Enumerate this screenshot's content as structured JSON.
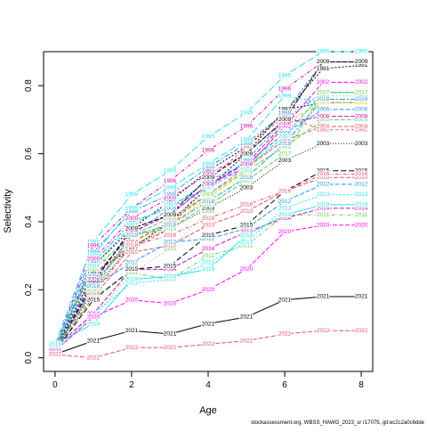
{
  "footer_note": "stockassessment.org, WBSS_HAWG_2023_sr r17075, git:ec2c2a0c6dde",
  "chart_data": {
    "type": "line",
    "xlabel": "Age",
    "ylabel": "Selectivity",
    "xlim": [
      -0.3,
      8.3
    ],
    "ylim": [
      -0.04,
      0.9
    ],
    "x_ticks": [
      0,
      2,
      4,
      6,
      8
    ],
    "y_ticks": [
      0.0,
      0.2,
      0.4,
      0.6,
      0.8
    ],
    "grid": false,
    "x": [
      0,
      1,
      2,
      3,
      4,
      5,
      6,
      7,
      8
    ],
    "series": [
      {
        "label": "1991",
        "color": "#000000",
        "dash": "2,2",
        "values": [
          0.02,
          0.27,
          0.38,
          0.46,
          0.55,
          0.62,
          0.72,
          0.85,
          0.86
        ]
      },
      {
        "label": "1992",
        "color": "#DF536B",
        "dash": "3,3",
        "values": [
          0.03,
          0.27,
          0.32,
          0.38,
          0.52,
          0.62,
          0.71,
          0.67,
          0.67
        ]
      },
      {
        "label": "1993",
        "color": "#61D04F",
        "dash": "1,3",
        "values": [
          0.02,
          0.12,
          0.25,
          0.32,
          0.43,
          0.55,
          0.66,
          0.77,
          0.77
        ]
      },
      {
        "label": "1994",
        "color": "#2297E6",
        "dash": "6,2,2,2",
        "values": [
          0.03,
          0.28,
          0.4,
          0.44,
          0.5,
          0.58,
          0.7,
          0.78,
          0.78
        ]
      },
      {
        "label": "1995",
        "color": "#28E2E5",
        "dash": "8,3",
        "values": [
          0.04,
          0.34,
          0.48,
          0.55,
          0.65,
          0.72,
          0.83,
          0.9,
          0.9
        ]
      },
      {
        "label": "1996",
        "color": "#CD0BBC",
        "dash": "4,2,1,2",
        "values": [
          0.03,
          0.33,
          0.44,
          0.52,
          0.61,
          0.68,
          0.79,
          0.87,
          0.87
        ]
      },
      {
        "label": "1997",
        "color": "#000000",
        "dash": "2,2",
        "values": [
          0.02,
          0.25,
          0.32,
          0.4,
          0.5,
          0.6,
          0.73,
          0.75,
          0.75
        ]
      },
      {
        "label": "1998",
        "color": "#2297E6",
        "dash": "6,2,2,2",
        "values": [
          0.03,
          0.31,
          0.43,
          0.48,
          0.56,
          0.63,
          0.72,
          0.87,
          0.87
        ]
      },
      {
        "label": "1999",
        "color": "#28E2E5",
        "dash": "8,3",
        "values": [
          0.03,
          0.3,
          0.44,
          0.5,
          0.57,
          0.64,
          0.77,
          0.75,
          0.75
        ]
      },
      {
        "label": "2000",
        "color": "#CD0BBC",
        "dash": "4,2,1,2",
        "values": [
          0.02,
          0.29,
          0.41,
          0.47,
          0.54,
          0.6,
          0.7,
          0.87,
          0.87
        ]
      },
      {
        "label": "2001",
        "color": "#F5C710",
        "dash": "5,2",
        "values": [
          0.02,
          0.24,
          0.34,
          0.39,
          0.47,
          0.55,
          0.69,
          0.75,
          0.75
        ]
      },
      {
        "label": "2002",
        "color": "#FF00FF",
        "dash": "5,2",
        "values": [
          0.02,
          0.22,
          0.38,
          0.42,
          0.51,
          0.56,
          0.68,
          0.81,
          0.81
        ]
      },
      {
        "label": "2003",
        "color": "#000000",
        "dash": "1,2",
        "values": [
          0.02,
          0.2,
          0.33,
          0.38,
          0.44,
          0.5,
          0.58,
          0.63,
          0.63
        ]
      },
      {
        "label": "2004",
        "color": "#DF536B",
        "dash": "5,2",
        "values": [
          0.02,
          0.22,
          0.34,
          0.4,
          0.48,
          0.56,
          0.64,
          0.68,
          0.68
        ]
      },
      {
        "label": "2005",
        "color": "#61D04F",
        "dash": "5,2",
        "values": [
          0.03,
          0.26,
          0.36,
          0.41,
          0.48,
          0.55,
          0.62,
          0.7,
          0.7
        ]
      },
      {
        "label": "2006",
        "color": "#2297E6",
        "dash": "5,2",
        "values": [
          0.02,
          0.24,
          0.36,
          0.44,
          0.52,
          0.57,
          0.66,
          0.73,
          0.73
        ]
      },
      {
        "label": "2007",
        "color": "#28E2E5",
        "dash": "5,2",
        "values": [
          0.03,
          0.27,
          0.39,
          0.45,
          0.5,
          0.56,
          0.65,
          0.78,
          0.78
        ]
      },
      {
        "label": "2008",
        "color": "#CD0BBC",
        "dash": "5,2",
        "values": [
          0.02,
          0.23,
          0.37,
          0.42,
          0.51,
          0.57,
          0.69,
          0.71,
          0.71
        ]
      },
      {
        "label": "2009",
        "color": "#000000",
        "dash": "5,2",
        "values": [
          0.02,
          0.22,
          0.38,
          0.42,
          0.53,
          0.6,
          0.7,
          0.87,
          0.87
        ]
      },
      {
        "label": "2010",
        "color": "#DF536B",
        "dash": "5,2",
        "values": [
          0.02,
          0.18,
          0.31,
          0.33,
          0.39,
          0.43,
          0.49,
          0.53,
          0.53
        ]
      },
      {
        "label": "2011",
        "color": "#61D04F",
        "dash": "4,2,1,2",
        "values": [
          0.03,
          0.18,
          0.25,
          0.23,
          0.3,
          0.33,
          0.42,
          0.42,
          0.42
        ]
      },
      {
        "label": "2012",
        "color": "#2297E6",
        "dash": "5,2",
        "values": [
          0.02,
          0.21,
          0.28,
          0.34,
          0.35,
          0.38,
          0.46,
          0.51,
          0.51
        ]
      },
      {
        "label": "2013",
        "color": "#28E2E5",
        "dash": "2,2",
        "values": [
          0.02,
          0.13,
          0.22,
          0.23,
          0.28,
          0.34,
          0.44,
          0.48,
          0.48
        ]
      },
      {
        "label": "2014",
        "color": "#CD0BBC",
        "dash": "5,2",
        "values": [
          0.03,
          0.13,
          0.26,
          0.26,
          0.32,
          0.37,
          0.41,
          0.44,
          0.44
        ]
      },
      {
        "label": "2015",
        "color": "#000000",
        "dash": "6,3",
        "values": [
          0.02,
          0.17,
          0.26,
          0.27,
          0.36,
          0.39,
          0.49,
          0.55,
          0.55
        ]
      },
      {
        "label": "2016",
        "color": "#DF536B",
        "dash": "4,2,1,2",
        "values": [
          0.03,
          0.19,
          0.33,
          0.36,
          0.41,
          0.45,
          0.49,
          0.54,
          0.54
        ]
      },
      {
        "label": "2017",
        "color": "#61D04F",
        "dash": "5,2",
        "values": [
          0.03,
          0.2,
          0.36,
          0.38,
          0.45,
          0.52,
          0.6,
          0.78,
          0.78
        ]
      },
      {
        "label": "2018",
        "color": "#2297E6",
        "dash": "6,2,2,2",
        "values": [
          0.02,
          0.21,
          0.36,
          0.39,
          0.46,
          0.53,
          0.63,
          0.76,
          0.76
        ]
      },
      {
        "label": "2019",
        "color": "#28E2E5",
        "dash": "",
        "values": [
          0.04,
          0.1,
          0.23,
          0.24,
          0.26,
          0.36,
          0.42,
          0.45,
          0.45
        ]
      },
      {
        "label": "2020",
        "color": "#FF00FF",
        "dash": "5,2",
        "values": [
          0.02,
          0.12,
          0.17,
          0.16,
          0.2,
          0.26,
          0.37,
          0.39,
          0.39
        ]
      },
      {
        "label": "2021",
        "color": "#000000",
        "dash": "",
        "values": [
          0.01,
          0.05,
          0.08,
          0.07,
          0.1,
          0.12,
          0.17,
          0.18,
          0.18
        ]
      },
      {
        "label": "2022",
        "color": "#DF536B",
        "dash": "5,2",
        "values": [
          0.01,
          0.0,
          0.03,
          0.03,
          0.04,
          0.05,
          0.07,
          0.08,
          0.08
        ]
      }
    ]
  }
}
